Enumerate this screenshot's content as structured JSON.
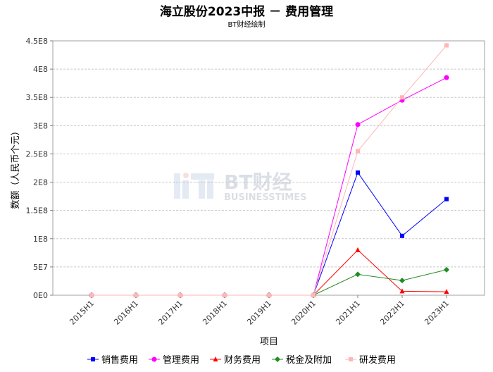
{
  "chart_data": {
    "type": "line",
    "title": "海立股份2023中报 － 费用管理",
    "subtitle": "BT财经绘制",
    "xlabel": "项目",
    "ylabel": "数额（人民币个元）",
    "watermark": {
      "main": "BT财经",
      "sub": "BUSINESSTIMES"
    },
    "categories": [
      "2015H1",
      "2016H1",
      "2017H1",
      "2018H1",
      "2019H1",
      "2020H1",
      "2021H1",
      "2022H1",
      "2023H1"
    ],
    "ylim": [
      0,
      450000000
    ],
    "yticks": [
      {
        "value": 0,
        "label": "0E0"
      },
      {
        "value": 50000000,
        "label": "5E7"
      },
      {
        "value": 100000000,
        "label": "1E8"
      },
      {
        "value": 150000000,
        "label": "1.5E8"
      },
      {
        "value": 200000000,
        "label": "2E8"
      },
      {
        "value": 250000000,
        "label": "2.5E8"
      },
      {
        "value": 300000000,
        "label": "3E8"
      },
      {
        "value": 350000000,
        "label": "3.5E8"
      },
      {
        "value": 400000000,
        "label": "4E8"
      },
      {
        "value": 450000000,
        "label": "4.5E8"
      }
    ],
    "grid": true,
    "legend_position": "bottom",
    "series": [
      {
        "name": "销售费用",
        "color": "#0000ff",
        "marker": "square",
        "values": [
          0,
          0,
          0,
          0,
          0,
          0,
          217000000,
          105000000,
          170000000
        ]
      },
      {
        "name": "管理费用",
        "color": "#ff00ff",
        "marker": "circle",
        "values": [
          0,
          0,
          0,
          0,
          0,
          0,
          302000000,
          345000000,
          385000000
        ]
      },
      {
        "name": "财务费用",
        "color": "#ff0000",
        "marker": "triangle",
        "values": [
          0,
          0,
          0,
          0,
          0,
          0,
          80000000,
          7000000,
          6000000
        ]
      },
      {
        "name": "税金及附加",
        "color": "#228b22",
        "marker": "diamond",
        "values": [
          0,
          0,
          0,
          0,
          0,
          0,
          37000000,
          26000000,
          45000000
        ]
      },
      {
        "name": "研发费用",
        "color": "#ffb6b6",
        "marker": "square",
        "values": [
          0,
          0,
          0,
          0,
          0,
          0,
          255000000,
          350000000,
          442000000
        ]
      }
    ]
  }
}
